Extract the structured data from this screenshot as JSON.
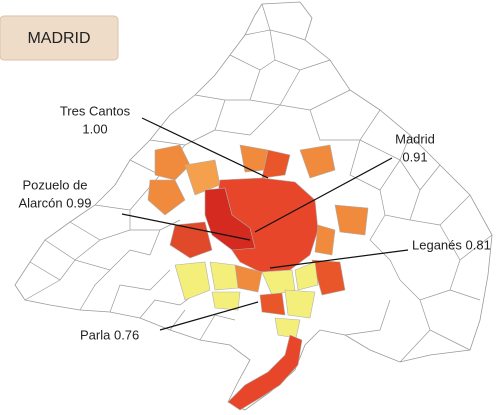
{
  "header": {
    "title": "MADRID"
  },
  "labels": [
    {
      "lines": [
        "Tres Cantos",
        "1.00"
      ]
    },
    {
      "lines": [
        "Madrid",
        "0.91"
      ]
    },
    {
      "lines": [
        "Pozuelo de",
        "Alarcón 0.99"
      ]
    },
    {
      "lines": [
        "Leganés 0.81"
      ]
    },
    {
      "lines": [
        "Parla 0.76"
      ]
    }
  ]
}
